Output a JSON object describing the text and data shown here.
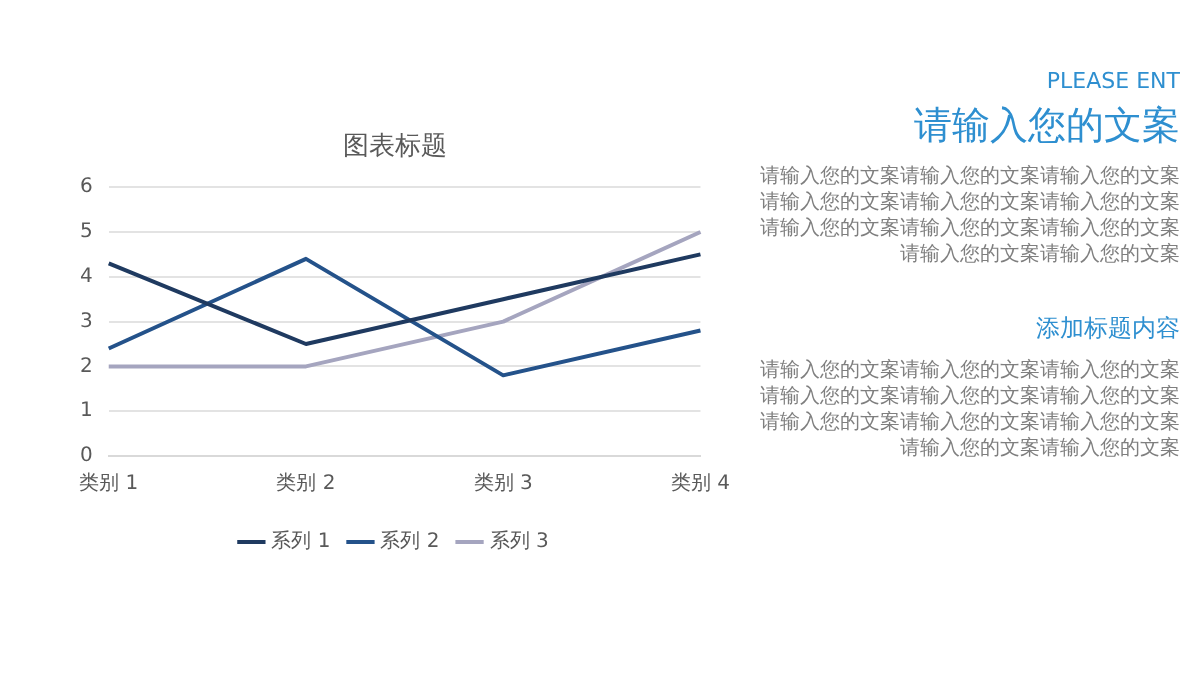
{
  "chart_data": {
    "type": "line",
    "title": "图表标题",
    "categories": [
      "类别 1",
      "类别 2",
      "类别 3",
      "类别 4"
    ],
    "series": [
      {
        "name": "系列 1",
        "color": "#1f3a60",
        "values": [
          4.3,
          2.5,
          3.5,
          4.5
        ]
      },
      {
        "name": "系列 2",
        "color": "#24528a",
        "values": [
          2.4,
          4.4,
          1.8,
          2.8
        ]
      },
      {
        "name": "系列 3",
        "color": "#a5a5bf",
        "values": [
          2,
          2,
          3,
          5
        ]
      }
    ],
    "ylim": [
      0,
      6
    ],
    "yticks": [
      0,
      1,
      2,
      3,
      4,
      5,
      6
    ],
    "grid": "y",
    "legend": "bottom",
    "marker": "none",
    "line_style": "solid",
    "annotations": [
      "PLEASE ENT",
      "请输入您的文案",
      "请输入您的文案请输入您的文案请输入您的文案请输入您的文案请输入您的文案请输入您的文案请输入您的文案请输入您的文案请输入您的文案请输入您的文案请输入您的文案",
      "添加标题内容",
      "请输入您的文案请输入您的文案请输入您的文案请输入您的文案请输入您的文案请输入您的文案请输入您的文案请输入您的文案请输入您的文案请输入您的文案请输入您的文案"
    ]
  }
}
